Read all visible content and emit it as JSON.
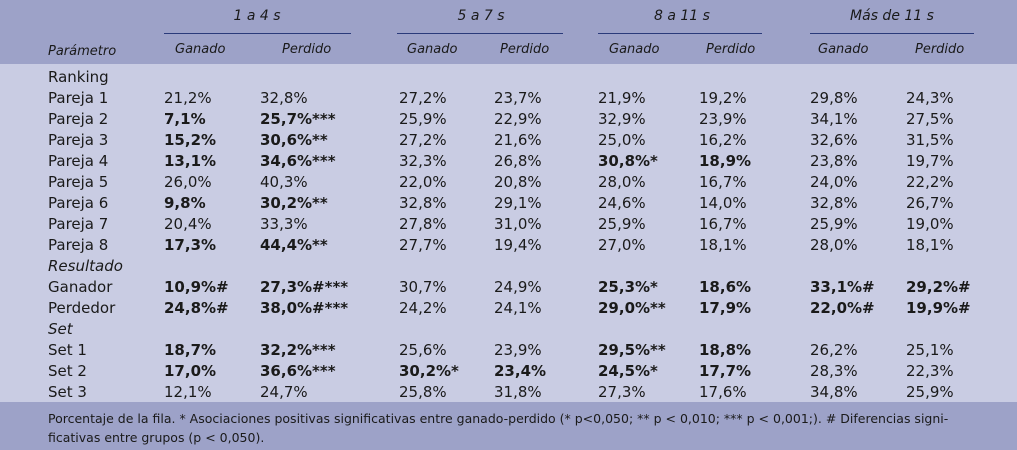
{
  "header": {
    "param_label": "Parámetro",
    "groups": [
      {
        "label": "1 a 4 s",
        "sub": [
          "Ganado",
          "Perdido"
        ]
      },
      {
        "label": "5 a 7 s",
        "sub": [
          "Ganado",
          "Perdido"
        ]
      },
      {
        "label": "8 a 11 s",
        "sub": [
          "Ganado",
          "Perdido"
        ]
      },
      {
        "label": "Más de 11 s",
        "sub": [
          "Ganado",
          "Perdido"
        ]
      }
    ]
  },
  "rows": [
    {
      "label": "Ranking",
      "italic": false,
      "section": true,
      "cells": []
    },
    {
      "label": "Pareja 1",
      "cells": [
        [
          "21,2%",
          false
        ],
        [
          "32,8%",
          false
        ],
        [
          "27,2%",
          false
        ],
        [
          "23,7%",
          false
        ],
        [
          "21,9%",
          false
        ],
        [
          "19,2%",
          false
        ],
        [
          "29,8%",
          false
        ],
        [
          "24,3%",
          false
        ]
      ]
    },
    {
      "label": "Pareja 2",
      "cells": [
        [
          "7,1%",
          true
        ],
        [
          "25,7%***",
          true
        ],
        [
          "25,9%",
          false
        ],
        [
          "22,9%",
          false
        ],
        [
          "32,9%",
          false
        ],
        [
          "23,9%",
          false
        ],
        [
          "34,1%",
          false
        ],
        [
          "27,5%",
          false
        ]
      ]
    },
    {
      "label": "Pareja 3",
      "cells": [
        [
          "15,2%",
          true
        ],
        [
          "30,6%**",
          true
        ],
        [
          "27,2%",
          false
        ],
        [
          "21,6%",
          false
        ],
        [
          "25,0%",
          false
        ],
        [
          "16,2%",
          false
        ],
        [
          "32,6%",
          false
        ],
        [
          "31,5%",
          false
        ]
      ]
    },
    {
      "label": "Pareja 4",
      "cells": [
        [
          "13,1%",
          true
        ],
        [
          "34,6%***",
          true
        ],
        [
          "32,3%",
          false
        ],
        [
          "26,8%",
          false
        ],
        [
          "30,8%*",
          true
        ],
        [
          "18,9%",
          true
        ],
        [
          "23,8%",
          false
        ],
        [
          "19,7%",
          false
        ]
      ]
    },
    {
      "label": "Pareja 5",
      "cells": [
        [
          "26,0%",
          false
        ],
        [
          "40,3%",
          false
        ],
        [
          "22,0%",
          false
        ],
        [
          "20,8%",
          false
        ],
        [
          "28,0%",
          false
        ],
        [
          "16,7%",
          false
        ],
        [
          "24,0%",
          false
        ],
        [
          "22,2%",
          false
        ]
      ]
    },
    {
      "label": "Pareja 6",
      "cells": [
        [
          "9,8%",
          true
        ],
        [
          "30,2%**",
          true
        ],
        [
          "32,8%",
          false
        ],
        [
          "29,1%",
          false
        ],
        [
          "24,6%",
          false
        ],
        [
          "14,0%",
          false
        ],
        [
          "32,8%",
          false
        ],
        [
          "26,7%",
          false
        ]
      ]
    },
    {
      "label": "Pareja 7",
      "cells": [
        [
          "20,4%",
          false
        ],
        [
          "33,3%",
          false
        ],
        [
          "27,8%",
          false
        ],
        [
          "31,0%",
          false
        ],
        [
          "25,9%",
          false
        ],
        [
          "16,7%",
          false
        ],
        [
          "25,9%",
          false
        ],
        [
          "19,0%",
          false
        ]
      ]
    },
    {
      "label": "Pareja 8",
      "cells": [
        [
          "17,3%",
          true
        ],
        [
          "44,4%**",
          true
        ],
        [
          "27,7%",
          false
        ],
        [
          "19,4%",
          false
        ],
        [
          "27,0%",
          false
        ],
        [
          "18,1%",
          false
        ],
        [
          "28,0%",
          false
        ],
        [
          "18,1%",
          false
        ]
      ]
    },
    {
      "label": "Resultado",
      "italic": true,
      "section": true,
      "cells": []
    },
    {
      "label": "Ganador",
      "cells": [
        [
          "10,9%#",
          true
        ],
        [
          "27,3%#***",
          true
        ],
        [
          "30,7%",
          false
        ],
        [
          "24,9%",
          false
        ],
        [
          "25,3%*",
          true
        ],
        [
          "18,6%",
          true
        ],
        [
          "33,1%#",
          true
        ],
        [
          "29,2%#",
          true
        ]
      ]
    },
    {
      "label": "Perdedor",
      "cells": [
        [
          "24,8%#",
          true
        ],
        [
          "38,0%#***",
          true
        ],
        [
          "24,2%",
          false
        ],
        [
          "24,1%",
          false
        ],
        [
          "29,0%**",
          true
        ],
        [
          "17,9%",
          true
        ],
        [
          "22,0%#",
          true
        ],
        [
          "19,9%#",
          true
        ]
      ]
    },
    {
      "label": "Set",
      "italic": true,
      "section": true,
      "cells": []
    },
    {
      "label": "Set 1",
      "cells": [
        [
          "18,7%",
          true
        ],
        [
          "32,2%***",
          true
        ],
        [
          "25,6%",
          false
        ],
        [
          "23,9%",
          false
        ],
        [
          "29,5%**",
          true
        ],
        [
          "18,8%",
          true
        ],
        [
          "26,2%",
          false
        ],
        [
          "25,1%",
          false
        ]
      ]
    },
    {
      "label": "Set 2",
      "cells": [
        [
          "17,0%",
          true
        ],
        [
          "36,6%***",
          true
        ],
        [
          "30,2%*",
          true
        ],
        [
          "23,4%",
          true
        ],
        [
          "24,5%*",
          true
        ],
        [
          "17,7%",
          true
        ],
        [
          "28,3%",
          false
        ],
        [
          "22,3%",
          false
        ]
      ]
    },
    {
      "label": "Set 3",
      "cells": [
        [
          "12,1%",
          false
        ],
        [
          "24,7%",
          false
        ],
        [
          "25,8%",
          false
        ],
        [
          "31,8%",
          false
        ],
        [
          "27,3%",
          false
        ],
        [
          "17,6%",
          false
        ],
        [
          "34,8%",
          false
        ],
        [
          "25,9%",
          false
        ]
      ]
    }
  ],
  "footer": {
    "line1": "Porcentaje de la fila. * Asociaciones positivas significativas entre ganado-perdido (* p<0,050; ** p < 0,010; *** p < 0,001;). # Diferencias signi-",
    "line2": "ficativas entre grupos (p < 0,050)."
  }
}
